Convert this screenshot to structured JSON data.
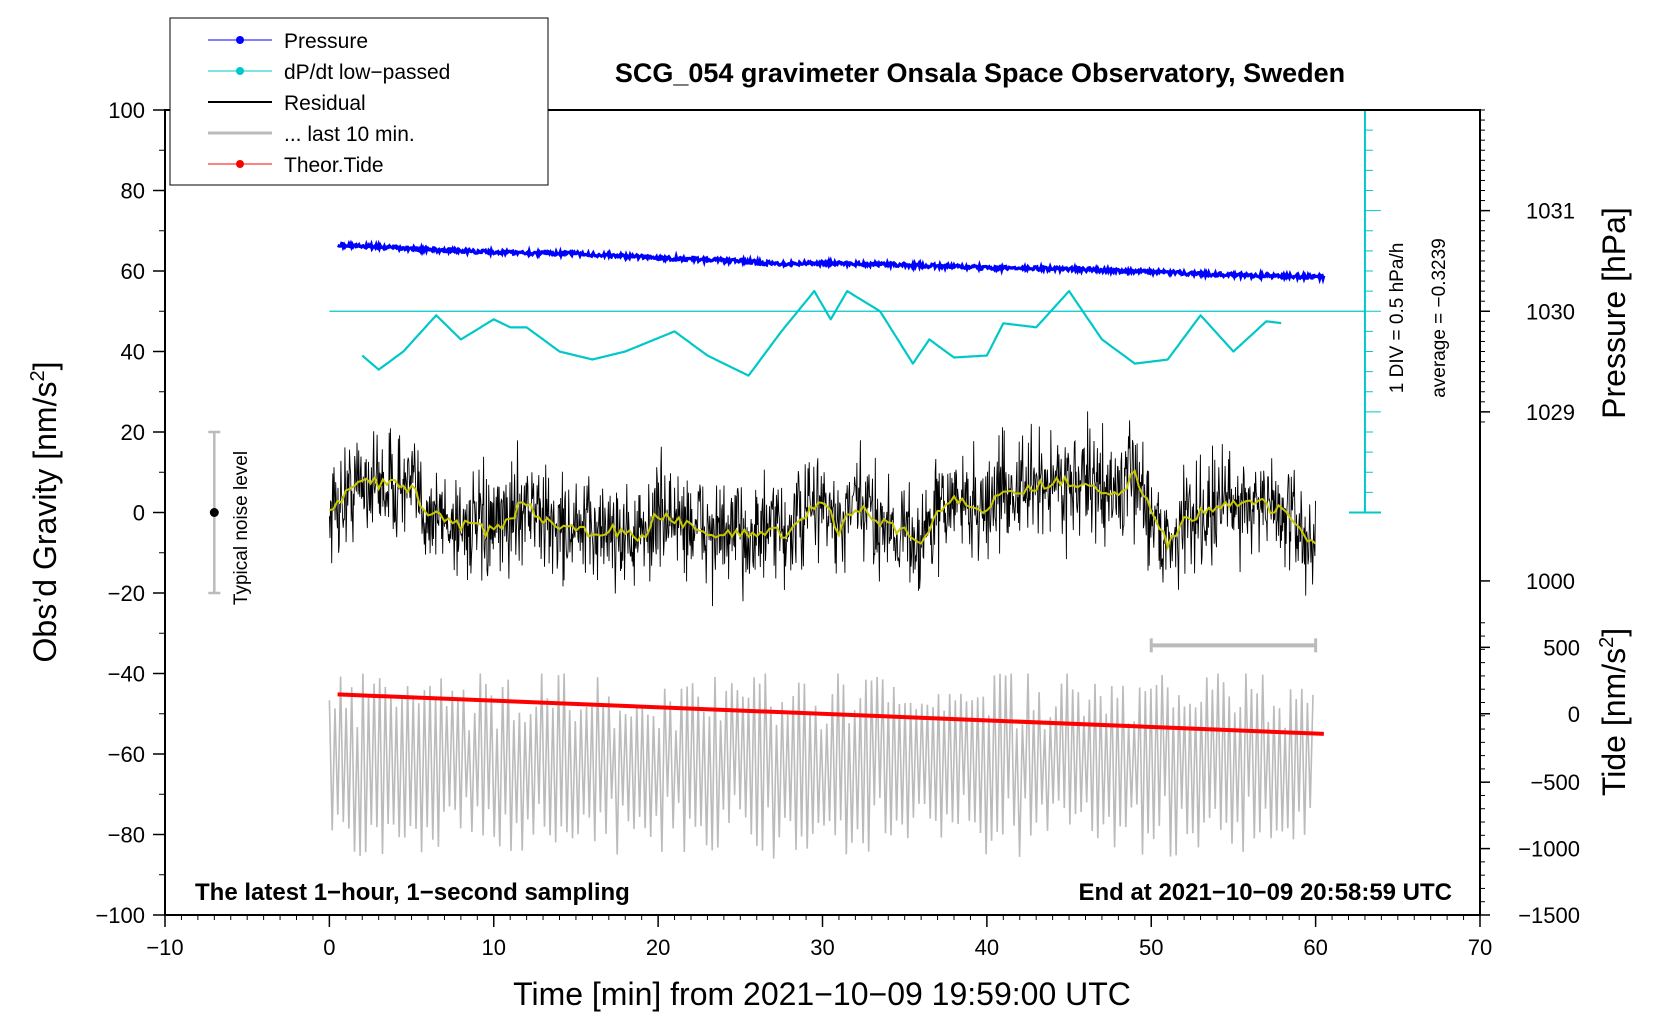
{
  "chart_data": {
    "type": "line",
    "title": "SCG_054 gravimeter Onsala Space Observatory, Sweden",
    "xlabel": "Time [min] from 2021−10−09 19:59:00 UTC",
    "ylabel_left": "Obs’d Gravity [nm/s",
    "ylabel_left_sup": "2",
    "ylabel_left_end": "]",
    "ylabel_pressure": "Pressure [hPa]",
    "ylabel_tide": "Tide [nm/s",
    "ylabel_tide_sup": "2",
    "ylabel_tide_end": "]",
    "xlim": [
      -10,
      70
    ],
    "ylim": [
      -100,
      100
    ],
    "x_ticks": [
      -10,
      0,
      10,
      20,
      30,
      40,
      50,
      60,
      70
    ],
    "x_tick_labels": [
      "−10",
      "0",
      "10",
      "20",
      "30",
      "40",
      "50",
      "60",
      "70"
    ],
    "y_ticks": [
      -100,
      -80,
      -60,
      -40,
      -20,
      0,
      20,
      40,
      60,
      80,
      100
    ],
    "y_tick_labels": [
      "−100",
      "−80",
      "−60",
      "−40",
      "−20",
      "0",
      "20",
      "40",
      "60",
      "80",
      "100"
    ],
    "pressure_ticks": [
      {
        "label": "1031",
        "gravity_equiv": 75
      },
      {
        "label": "1030",
        "gravity_equiv": 50
      },
      {
        "label": "1029",
        "gravity_equiv": 25
      },
      {
        "label": "1000",
        "gravity_equiv": -17
      }
    ],
    "tide_ticks": [
      {
        "label": "500",
        "gravity_equiv": -33.5
      },
      {
        "label": "0",
        "gravity_equiv": -50
      },
      {
        "label": "−500",
        "gravity_equiv": -67
      },
      {
        "label": "−1000",
        "gravity_equiv": -83.5
      },
      {
        "label": "−1500",
        "gravity_equiv": -100
      }
    ],
    "legend": [
      {
        "label": "Pressure",
        "color": "#0000ff",
        "marker": true
      },
      {
        "label": "dP/dt low−passed",
        "color": "#00c8c8",
        "marker": true
      },
      {
        "label": "Residual",
        "color": "#000000",
        "marker": false
      },
      {
        "label": "... last 10 min.",
        "color": "#bbbbbb",
        "marker": false
      },
      {
        "label": "Theor.Tide",
        "color": "#ff0000",
        "marker": true
      }
    ],
    "noise_bar": {
      "label": "Typical noise level",
      "x": -7,
      "center": 0,
      "half_range": 20
    },
    "ten_min_bar": {
      "x_start": 50,
      "x_end": 60,
      "y": -33
    },
    "dpdt_scale": {
      "label": "1 DIV = 0.5 hPa/h",
      "average_label": "average = −0.3239",
      "x": 63,
      "y_base": 0,
      "y_top": 100,
      "zero_line_y": 50
    },
    "notes": {
      "left": "The latest 1−hour, 1−second sampling",
      "right": "End at 2021−10−09 20:58:59 UTC"
    },
    "series": [
      {
        "name": "Pressure",
        "color": "#0000ff",
        "x": [
          0.5,
          5,
          10,
          15,
          20,
          25,
          27,
          30,
          35,
          40,
          45,
          50,
          55,
          60.5
        ],
        "y": [
          66.5,
          65.5,
          64.7,
          64.3,
          63.3,
          62.5,
          61.8,
          62.0,
          61.5,
          60.8,
          60.5,
          59.8,
          59.0,
          58.5
        ]
      },
      {
        "name": "dP/dt low-passed",
        "color": "#00c8c8",
        "x": [
          2,
          3,
          4.5,
          6.5,
          8,
          10,
          11,
          12,
          14,
          16,
          18,
          21,
          23,
          25.5,
          27.5,
          29.5,
          30.5,
          31.5,
          33.5,
          35.5,
          36.5,
          38,
          40,
          41,
          43,
          45,
          47,
          49,
          51,
          53,
          55,
          57,
          58
        ],
        "y": [
          39,
          35.5,
          40,
          49,
          43,
          48,
          46,
          46,
          40,
          38,
          40,
          45,
          39,
          34,
          45,
          55,
          48,
          55,
          50,
          37,
          43,
          38.5,
          39,
          47,
          46,
          55,
          43,
          37,
          38,
          49,
          40,
          47.5,
          47
        ]
      },
      {
        "name": "Residual smoothed",
        "color": "#c8c800",
        "x": [
          0,
          2,
          5,
          6,
          8,
          10,
          12,
          13,
          15,
          17,
          19,
          20,
          22,
          24,
          26,
          28,
          29,
          30,
          31,
          32,
          34,
          36,
          37,
          38,
          40,
          41,
          42,
          44,
          46,
          48,
          49,
          50,
          51,
          52,
          53,
          54,
          56,
          58,
          59,
          60
        ],
        "y": [
          0,
          8,
          6,
          0,
          -3,
          -5,
          3,
          -2,
          -5,
          -4,
          -7,
          0,
          -3,
          -6,
          -5,
          -5,
          0,
          3,
          -5,
          2,
          -3,
          -7,
          0,
          3,
          1,
          6,
          5,
          8,
          7,
          5,
          9,
          0,
          -8,
          -2,
          0,
          2,
          3,
          0,
          -4,
          -8
        ]
      },
      {
        "name": "Theor.Tide",
        "color": "#ff0000",
        "x": [
          0.5,
          60.5
        ],
        "y": [
          -45.2,
          -55
        ]
      }
    ]
  }
}
